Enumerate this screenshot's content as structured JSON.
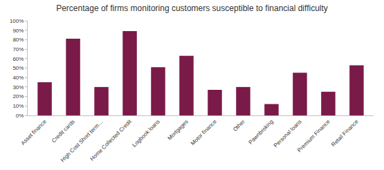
{
  "chart_data": {
    "type": "bar",
    "title": "Percentage of firms monitoring customers susceptible to financial difficulty",
    "categories": [
      "Asset finance",
      "Credit cards",
      "High Cost Short term…",
      "Home Collected Credit",
      "Logbook loans",
      "Mortgages",
      "Motor finance",
      "Other",
      "Pawnbroking",
      "Personal loans",
      "Premium Finance",
      "Retail Finance"
    ],
    "values": [
      35,
      81,
      30,
      89,
      51,
      63,
      27,
      30,
      12,
      45,
      25,
      53
    ],
    "color": "#7a1a48",
    "ylim": [
      0,
      100
    ],
    "yticks": [
      {
        "value": 0,
        "label": "0%"
      },
      {
        "value": 10,
        "label": "10%"
      },
      {
        "value": 20,
        "label": "20%"
      },
      {
        "value": 30,
        "label": "30%"
      },
      {
        "value": 40,
        "label": "40%"
      },
      {
        "value": 50,
        "label": "50%"
      },
      {
        "value": 60,
        "label": "60%"
      },
      {
        "value": 70,
        "label": "70%"
      },
      {
        "value": 80,
        "label": "80%"
      },
      {
        "value": 90,
        "label": "90%"
      },
      {
        "value": 100,
        "label": "100%"
      }
    ],
    "grid": false
  }
}
